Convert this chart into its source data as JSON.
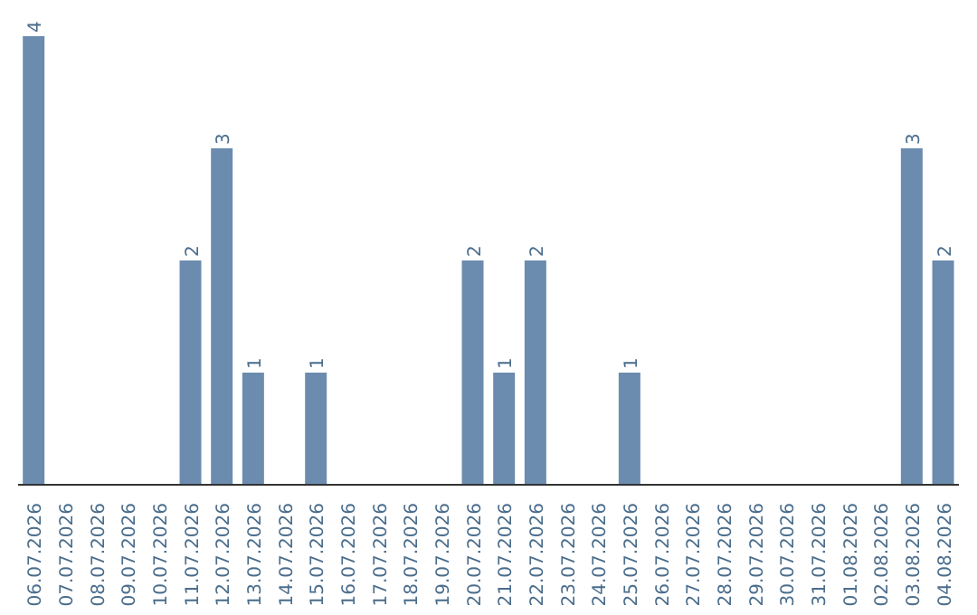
{
  "chart_data": {
    "type": "bar",
    "categories": [
      "06.07.2026",
      "07.07.2026",
      "08.07.2026",
      "09.07.2026",
      "10.07.2026",
      "11.07.2026",
      "12.07.2026",
      "13.07.2026",
      "14.07.2026",
      "15.07.2026",
      "16.07.2026",
      "17.07.2026",
      "18.07.2026",
      "19.07.2026",
      "20.07.2026",
      "21.07.2026",
      "22.07.2026",
      "23.07.2026",
      "24.07.2026",
      "25.07.2026",
      "26.07.2026",
      "27.07.2026",
      "28.07.2026",
      "29.07.2026",
      "30.07.2026",
      "31.07.2026",
      "01.08.2026",
      "02.08.2026",
      "03.08.2026",
      "04.08.2026"
    ],
    "values": [
      4,
      0,
      0,
      0,
      0,
      2,
      3,
      1,
      0,
      1,
      0,
      0,
      0,
      0,
      2,
      1,
      2,
      0,
      0,
      1,
      0,
      0,
      0,
      0,
      0,
      0,
      0,
      0,
      3,
      2
    ],
    "value_labels": [
      "4",
      null,
      null,
      null,
      null,
      "2",
      "3",
      "1",
      null,
      "1",
      null,
      null,
      null,
      null,
      "2",
      "1",
      "2",
      null,
      null,
      "1",
      null,
      null,
      null,
      null,
      null,
      null,
      null,
      null,
      "3",
      "2"
    ],
    "color": "#6b8cae",
    "tick_labels": "x"
  }
}
